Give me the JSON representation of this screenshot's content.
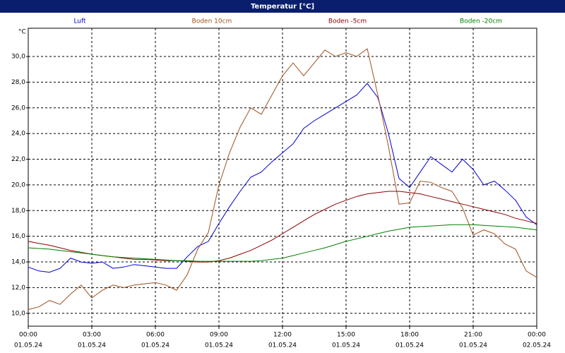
{
  "chart_data": {
    "type": "line",
    "title": "Temperatur [°C]",
    "y_label": "°C",
    "x": [
      0,
      0.5,
      1,
      1.5,
      2,
      2.5,
      3,
      3.5,
      4,
      4.5,
      5,
      5.5,
      6,
      6.5,
      7,
      7.5,
      8,
      8.5,
      9,
      9.5,
      10,
      10.5,
      11,
      11.5,
      12,
      12.5,
      13,
      13.5,
      14,
      14.5,
      15,
      15.5,
      16,
      16.5,
      17,
      17.5,
      18,
      18.5,
      19,
      19.5,
      20,
      20.5,
      21,
      21.5,
      22,
      22.5,
      23,
      23.5,
      24
    ],
    "series": [
      {
        "name": "Luft",
        "color": "#0000d0",
        "values": [
          13.6,
          13.3,
          13.2,
          13.5,
          14.3,
          14.0,
          13.9,
          14.0,
          13.5,
          13.6,
          13.8,
          13.7,
          13.6,
          13.5,
          13.5,
          14.4,
          15.2,
          15.6,
          17.0,
          18.3,
          19.5,
          20.6,
          21.0,
          21.8,
          22.5,
          23.2,
          24.4,
          25.0,
          25.5,
          26.0,
          26.5,
          27.0,
          27.9,
          26.8,
          24.0,
          20.5,
          19.8,
          21.0,
          22.2,
          21.6,
          21.0,
          22.0,
          21.2,
          20.0,
          20.3,
          19.6,
          18.8,
          17.5,
          16.9
        ]
      },
      {
        "name": "Boden 10cm",
        "color": "#a0501e",
        "values": [
          10.3,
          10.5,
          11.0,
          10.7,
          11.5,
          12.2,
          11.2,
          11.8,
          12.2,
          12.0,
          12.2,
          12.3,
          12.4,
          12.2,
          11.8,
          13.0,
          15.0,
          16.3,
          20.0,
          22.5,
          24.5,
          26.0,
          25.5,
          27.0,
          28.5,
          29.5,
          28.5,
          29.5,
          30.5,
          30.0,
          30.3,
          30.0,
          30.6,
          27.0,
          23.0,
          18.5,
          18.6,
          20.3,
          20.2,
          19.8,
          19.5,
          18.2,
          16.1,
          16.5,
          16.2,
          15.4,
          15.0,
          13.3,
          12.8
        ]
      },
      {
        "name": "Boden -5cm",
        "color": "#8b0000",
        "values": [
          15.6,
          15.45,
          15.3,
          15.1,
          14.9,
          14.75,
          14.6,
          14.5,
          14.4,
          14.3,
          14.2,
          14.2,
          14.15,
          14.1,
          14.1,
          14.05,
          14.0,
          14.0,
          14.1,
          14.3,
          14.6,
          14.9,
          15.3,
          15.7,
          16.2,
          16.7,
          17.2,
          17.7,
          18.1,
          18.5,
          18.8,
          19.1,
          19.3,
          19.4,
          19.5,
          19.5,
          19.4,
          19.3,
          19.1,
          18.9,
          18.7,
          18.5,
          18.3,
          18.1,
          17.9,
          17.7,
          17.4,
          17.2,
          17.0
        ]
      },
      {
        "name": "Boden -20cm",
        "color": "#008000",
        "values": [
          15.1,
          15.05,
          15.0,
          14.9,
          14.8,
          14.7,
          14.6,
          14.5,
          14.4,
          14.35,
          14.3,
          14.25,
          14.2,
          14.15,
          14.1,
          14.1,
          14.05,
          14.05,
          14.05,
          14.05,
          14.05,
          14.05,
          14.1,
          14.2,
          14.3,
          14.5,
          14.7,
          14.9,
          15.1,
          15.35,
          15.6,
          15.8,
          16.0,
          16.2,
          16.4,
          16.55,
          16.7,
          16.75,
          16.8,
          16.85,
          16.9,
          16.9,
          16.9,
          16.85,
          16.8,
          16.75,
          16.7,
          16.6,
          16.5
        ]
      }
    ],
    "xlim": [
      0,
      24
    ],
    "xticks": [
      {
        "value": 0,
        "label": "00:00"
      },
      {
        "value": 3,
        "label": "03:00"
      },
      {
        "value": 6,
        "label": "06:00"
      },
      {
        "value": 9,
        "label": "09:00"
      },
      {
        "value": 12,
        "label": "12:00"
      },
      {
        "value": 15,
        "label": "15:00"
      },
      {
        "value": 18,
        "label": "18:00"
      },
      {
        "value": 21,
        "label": "21:00"
      },
      {
        "value": 24,
        "label": "00:00"
      }
    ],
    "xtick_dates": [
      "01.05.24",
      "01.05.24",
      "01.05.24",
      "01.05.24",
      "01.05.24",
      "01.05.24",
      "01.05.24",
      "01.05.24",
      "02.05.24"
    ],
    "ylim": [
      9.0,
      32.2
    ],
    "yticks": [
      {
        "value": 10,
        "label": "10,0"
      },
      {
        "value": 12,
        "label": "12,0"
      },
      {
        "value": 14,
        "label": "14,0"
      },
      {
        "value": 16,
        "label": "16,0"
      },
      {
        "value": 18,
        "label": "18,0"
      },
      {
        "value": 20,
        "label": "20,0"
      },
      {
        "value": 22,
        "label": "22,0"
      },
      {
        "value": 24,
        "label": "24,0"
      },
      {
        "value": 26,
        "label": "26,0"
      },
      {
        "value": 28,
        "label": "28,0"
      },
      {
        "value": 30,
        "label": "30,0"
      }
    ],
    "grid": true
  }
}
